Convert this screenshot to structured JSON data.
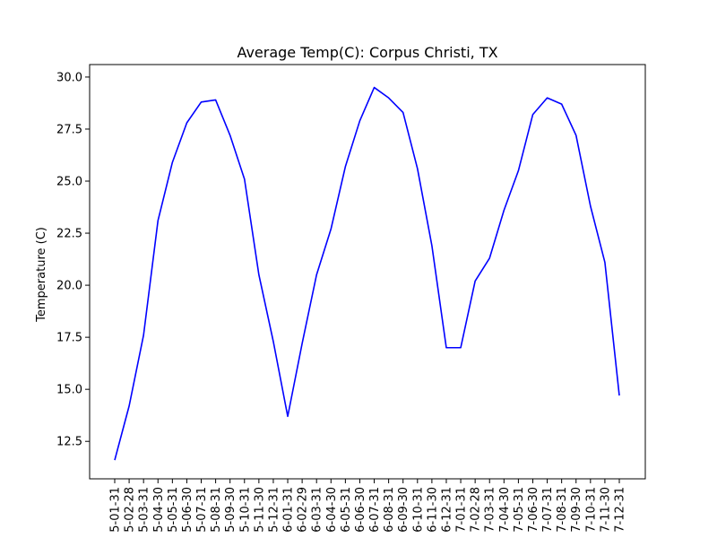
{
  "chart_data": {
    "type": "line",
    "title": "Average Temp(C): Corpus Christi, TX",
    "xlabel": "",
    "ylabel": "Temperature (C)",
    "ylim": [
      10.7,
      30.6
    ],
    "yticks": [
      12.5,
      15.0,
      17.5,
      20.0,
      22.5,
      25.0,
      27.5,
      30.0
    ],
    "grid": false,
    "series_color": "#0000ff",
    "categories": [
      "5-01-31",
      "5-02-28",
      "5-03-31",
      "5-04-30",
      "5-05-31",
      "5-06-30",
      "5-07-31",
      "5-08-31",
      "5-09-30",
      "5-10-31",
      "5-11-30",
      "5-12-31",
      "6-01-31",
      "6-02-29",
      "6-03-31",
      "6-04-30",
      "6-05-31",
      "6-06-30",
      "6-07-31",
      "6-08-31",
      "6-09-30",
      "6-10-31",
      "6-11-30",
      "6-12-31",
      "7-01-31",
      "7-02-28",
      "7-03-31",
      "7-04-30",
      "7-05-31",
      "7-06-30",
      "7-07-31",
      "7-08-31",
      "7-09-30",
      "7-10-31",
      "7-11-30",
      "7-12-31"
    ],
    "values": [
      11.6,
      14.2,
      17.6,
      23.1,
      25.9,
      27.8,
      28.8,
      28.9,
      27.2,
      25.1,
      20.5,
      17.3,
      13.7,
      17.2,
      20.5,
      22.7,
      25.7,
      27.9,
      29.5,
      29.0,
      28.3,
      25.6,
      21.9,
      17.0,
      17.0,
      20.2,
      21.3,
      23.6,
      25.5,
      28.2,
      29.0,
      28.7,
      27.2,
      23.8,
      21.1,
      14.7
    ]
  }
}
